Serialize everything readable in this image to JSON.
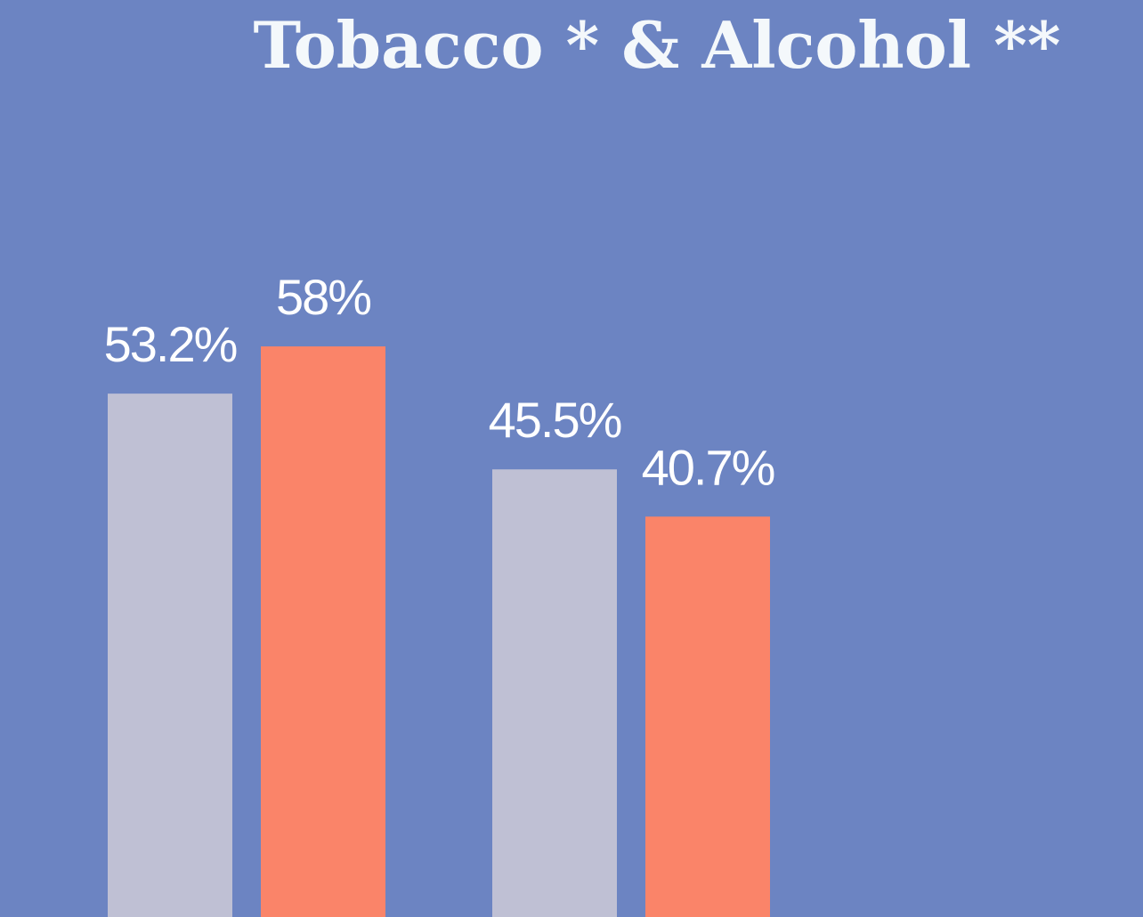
{
  "chart_data": {
    "type": "bar",
    "title": "Tobacco * & Alcohol **",
    "categories": [
      "",
      ""
    ],
    "series": [
      {
        "color": "#bfc0d4",
        "values": [
          53.2,
          45.5
        ],
        "labels": [
          "53.2%",
          "45.5%"
        ]
      },
      {
        "color": "#fa8469",
        "values": [
          58,
          40.7
        ],
        "labels": [
          "58%",
          "40.7%"
        ]
      }
    ],
    "ylim": [
      0,
      100
    ],
    "grid": false,
    "legend": "none"
  },
  "colors": {
    "background": "#6c84c2",
    "title": "#f4f8fb",
    "label": "#ffffff"
  }
}
